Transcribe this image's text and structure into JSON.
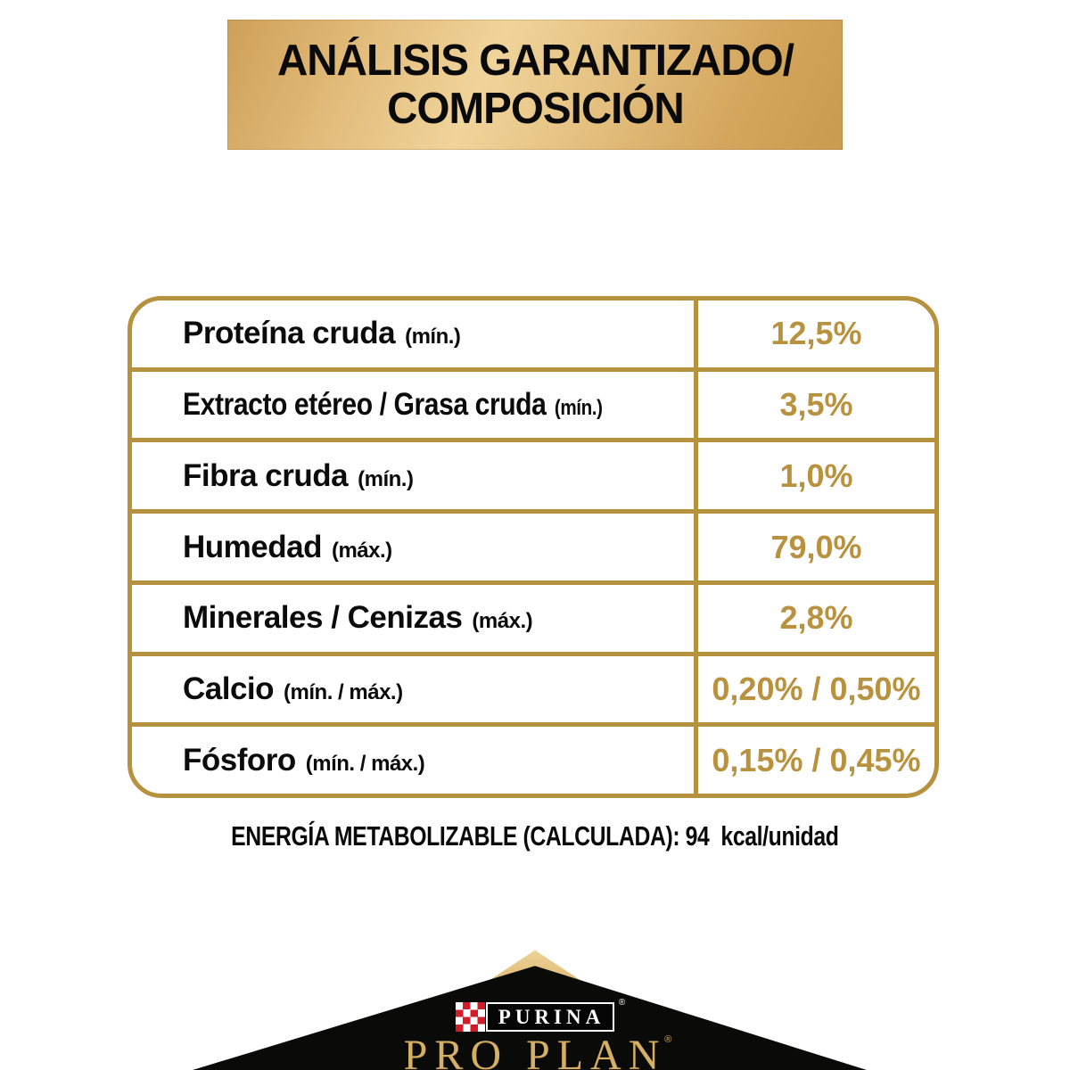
{
  "banner": {
    "title_line1": "ANÁLISIS GARANTIZADO/",
    "title_line2": "COMPOSICIÓN"
  },
  "table": {
    "rows": [
      {
        "label": "Proteína cruda",
        "qualifier": "(mín.)",
        "value": "12,5%"
      },
      {
        "label": "Extracto etéreo / Grasa cruda",
        "qualifier": "(mín.)",
        "value": "3,5%"
      },
      {
        "label": "Fibra cruda",
        "qualifier": "(mín.)",
        "value": "1,0%"
      },
      {
        "label": "Humedad",
        "qualifier": "(máx.)",
        "value": "79,0%"
      },
      {
        "label": "Minerales / Cenizas",
        "qualifier": "(máx.)",
        "value": "2,8%"
      },
      {
        "label": "Calcio",
        "qualifier": "(mín. / máx.)",
        "value": "0,20% / 0,50%"
      },
      {
        "label": "Fósforo",
        "qualifier": "(mín. / máx.)",
        "value": "0,15% / 0,45%"
      }
    ]
  },
  "energy_line": "ENERGÍA METABOLIZABLE (CALCULADA): 94  kcal/unidad",
  "brand": {
    "purina": "PURINA",
    "proplan": "PRO PLAN",
    "registered": "®"
  },
  "colors": {
    "gold_border": "#B6913E",
    "gold_value_text": "#B9923F",
    "banner_gold_light": "#F0D49A",
    "banner_gold_dark": "#C99B51",
    "purina_red": "#D31B2D",
    "proplan_gold": "#D4AF64",
    "roof_black": "#0A0A08"
  }
}
